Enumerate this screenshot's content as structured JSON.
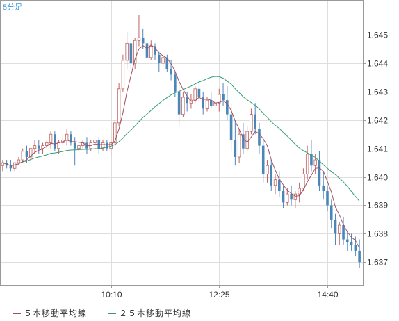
{
  "chart_data": {
    "type": "candlestick",
    "timeframe_label": "5分足",
    "y_ticks": [
      1.637,
      1.638,
      1.639,
      1.64,
      1.641,
      1.642,
      1.643,
      1.644,
      1.645
    ],
    "y_tick_labels": [
      "1.637",
      "1.638",
      "1.639",
      "1.640",
      "1.641",
      "1.642",
      "1.643",
      "1.644",
      "1.645"
    ],
    "ylim": [
      1.6362,
      1.6462
    ],
    "x_tick_labels": [
      "10:10",
      "12:25",
      "14:40"
    ],
    "x_tick_index": [
      27,
      54,
      81
    ],
    "grid": true,
    "colors": {
      "up": "#c06060",
      "down": "#4a86b8",
      "ma5": "#a05060",
      "ma25": "#2e9e73",
      "grid": "#dedede"
    },
    "legend": [
      {
        "label": "５本移動平均線",
        "color": "#a05060"
      },
      {
        "label": "２５本移動平均線",
        "color": "#2e9e73"
      }
    ],
    "ohlc": [
      [
        1.6404,
        1.6406,
        1.6402,
        1.6405
      ],
      [
        1.6405,
        1.6406,
        1.6403,
        1.6404
      ],
      [
        1.6404,
        1.6406,
        1.6402,
        1.6403
      ],
      [
        1.6403,
        1.6405,
        1.6402,
        1.6405
      ],
      [
        1.6405,
        1.6407,
        1.6404,
        1.6406
      ],
      [
        1.6406,
        1.641,
        1.6405,
        1.6409
      ],
      [
        1.6409,
        1.6411,
        1.6405,
        1.6407
      ],
      [
        1.6407,
        1.641,
        1.6406,
        1.641
      ],
      [
        1.641,
        1.6413,
        1.6408,
        1.6411
      ],
      [
        1.6411,
        1.6413,
        1.6408,
        1.641
      ],
      [
        1.641,
        1.6412,
        1.6408,
        1.6411
      ],
      [
        1.6411,
        1.6413,
        1.641,
        1.6412
      ],
      [
        1.6412,
        1.6416,
        1.641,
        1.6415
      ],
      [
        1.6415,
        1.6416,
        1.6409,
        1.641
      ],
      [
        1.641,
        1.6413,
        1.6408,
        1.6412
      ],
      [
        1.6412,
        1.6415,
        1.6411,
        1.6413
      ],
      [
        1.6413,
        1.6417,
        1.6411,
        1.6415
      ],
      [
        1.6415,
        1.6416,
        1.6411,
        1.6412
      ],
      [
        1.6412,
        1.6414,
        1.6404,
        1.641
      ],
      [
        1.641,
        1.6413,
        1.6409,
        1.6411
      ],
      [
        1.6411,
        1.6413,
        1.641,
        1.6412
      ],
      [
        1.6412,
        1.6414,
        1.6408,
        1.641
      ],
      [
        1.641,
        1.6413,
        1.6409,
        1.6412
      ],
      [
        1.6412,
        1.6415,
        1.641,
        1.6413
      ],
      [
        1.6413,
        1.6414,
        1.6408,
        1.641
      ],
      [
        1.641,
        1.6413,
        1.6409,
        1.6412
      ],
      [
        1.6412,
        1.6413,
        1.6409,
        1.641
      ],
      [
        1.641,
        1.6413,
        1.6407,
        1.6412
      ],
      [
        1.6412,
        1.642,
        1.6411,
        1.6419
      ],
      [
        1.6419,
        1.6433,
        1.6418,
        1.6431
      ],
      [
        1.6431,
        1.6443,
        1.643,
        1.6441
      ],
      [
        1.6441,
        1.6451,
        1.6438,
        1.6447
      ],
      [
        1.6447,
        1.6448,
        1.6438,
        1.644
      ],
      [
        1.644,
        1.6449,
        1.6438,
        1.6448
      ],
      [
        1.6448,
        1.6457,
        1.6446,
        1.6449
      ],
      [
        1.6449,
        1.6452,
        1.6445,
        1.6447
      ],
      [
        1.6447,
        1.6448,
        1.6441,
        1.6442
      ],
      [
        1.6442,
        1.6448,
        1.6441,
        1.6446
      ],
      [
        1.6446,
        1.6447,
        1.6441,
        1.6443
      ],
      [
        1.6443,
        1.6444,
        1.6437,
        1.644
      ],
      [
        1.644,
        1.6443,
        1.6438,
        1.6442
      ],
      [
        1.6442,
        1.6443,
        1.6437,
        1.6438
      ],
      [
        1.6438,
        1.6441,
        1.6434,
        1.6436
      ],
      [
        1.6436,
        1.6437,
        1.6428,
        1.643
      ],
      [
        1.643,
        1.6433,
        1.6418,
        1.6422
      ],
      [
        1.6422,
        1.643,
        1.6421,
        1.6428
      ],
      [
        1.6428,
        1.643,
        1.6423,
        1.6426
      ],
      [
        1.6426,
        1.6429,
        1.6424,
        1.6427
      ],
      [
        1.6427,
        1.6432,
        1.6426,
        1.6431
      ],
      [
        1.6431,
        1.6434,
        1.6426,
        1.6428
      ],
      [
        1.6428,
        1.643,
        1.6422,
        1.6424
      ],
      [
        1.6424,
        1.6428,
        1.6423,
        1.6427
      ],
      [
        1.6427,
        1.643,
        1.6424,
        1.6425
      ],
      [
        1.6425,
        1.6428,
        1.6423,
        1.6426
      ],
      [
        1.6426,
        1.6431,
        1.6423,
        1.6429
      ],
      [
        1.6429,
        1.6433,
        1.6425,
        1.6427
      ],
      [
        1.6427,
        1.6432,
        1.642,
        1.6422
      ],
      [
        1.6422,
        1.6426,
        1.6409,
        1.6413
      ],
      [
        1.6413,
        1.642,
        1.6404,
        1.6407
      ],
      [
        1.6407,
        1.6417,
        1.6405,
        1.6415
      ],
      [
        1.6415,
        1.6419,
        1.6408,
        1.641
      ],
      [
        1.641,
        1.6418,
        1.6409,
        1.6416
      ],
      [
        1.6416,
        1.6424,
        1.6415,
        1.6422
      ],
      [
        1.6422,
        1.6426,
        1.6415,
        1.6417
      ],
      [
        1.6417,
        1.6419,
        1.6408,
        1.6411
      ],
      [
        1.6411,
        1.6413,
        1.6398,
        1.6401
      ],
      [
        1.6401,
        1.6406,
        1.6398,
        1.6404
      ],
      [
        1.6404,
        1.6406,
        1.6395,
        1.6397
      ],
      [
        1.6397,
        1.6401,
        1.6394,
        1.6399
      ],
      [
        1.6399,
        1.6402,
        1.6393,
        1.6395
      ],
      [
        1.6395,
        1.6397,
        1.6389,
        1.6391
      ],
      [
        1.6391,
        1.6396,
        1.639,
        1.6394
      ],
      [
        1.6394,
        1.6397,
        1.639,
        1.6392
      ],
      [
        1.6392,
        1.6395,
        1.6389,
        1.6394
      ],
      [
        1.6394,
        1.6398,
        1.6391,
        1.6396
      ],
      [
        1.6396,
        1.6403,
        1.6395,
        1.6401
      ],
      [
        1.6401,
        1.6411,
        1.6399,
        1.6408
      ],
      [
        1.6408,
        1.6413,
        1.6402,
        1.6404
      ],
      [
        1.6404,
        1.6408,
        1.6401,
        1.6406
      ],
      [
        1.6406,
        1.6409,
        1.6395,
        1.6397
      ],
      [
        1.6397,
        1.6402,
        1.6392,
        1.6395
      ],
      [
        1.6395,
        1.6397,
        1.6388,
        1.639
      ],
      [
        1.639,
        1.6392,
        1.6382,
        1.6385
      ],
      [
        1.6385,
        1.6387,
        1.6376,
        1.638
      ],
      [
        1.638,
        1.6384,
        1.6376,
        1.6383
      ],
      [
        1.6383,
        1.6386,
        1.6376,
        1.6378
      ],
      [
        1.6378,
        1.6381,
        1.6374,
        1.6377
      ],
      [
        1.6377,
        1.638,
        1.6374,
        1.6376
      ],
      [
        1.6376,
        1.6379,
        1.6372,
        1.6374
      ],
      [
        1.6374,
        1.6378,
        1.6368,
        1.637
      ]
    ]
  }
}
